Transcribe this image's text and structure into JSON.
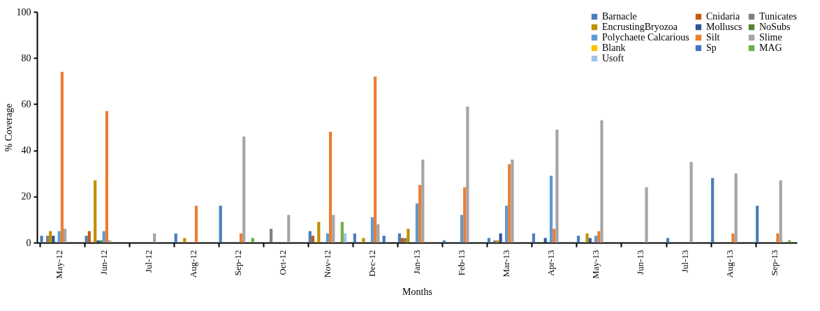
{
  "chart_data": {
    "type": "bar",
    "xlabel": "Months",
    "ylabel": "% Coverage",
    "categories": [
      "May-12",
      "Jun-12",
      "Jul-12",
      "Aug-12",
      "Sep-12",
      "Oct-12",
      "Nov-12",
      "Dec-12",
      "Jan-13",
      "Feb-13",
      "Mar-13",
      "Apr-13",
      "May-13",
      "Jun-13",
      "Jul-13",
      "Aug-13",
      "Sep-13"
    ],
    "series": [
      {
        "name": "Barnacle",
        "color": "#4a7ebb",
        "values": [
          3,
          3,
          0,
          4,
          16,
          0,
          5,
          4,
          4,
          1,
          2,
          4,
          3,
          0,
          2,
          28,
          16
        ]
      },
      {
        "name": "Cnidaria",
        "color": "#c55a11",
        "values": [
          0,
          5,
          0,
          0,
          0,
          0,
          3,
          0,
          2,
          0,
          0,
          0,
          0,
          0,
          0,
          0,
          0
        ]
      },
      {
        "name": "Tunicates",
        "color": "#7f7f7f",
        "values": [
          3,
          0,
          0,
          0,
          0,
          6,
          0,
          0,
          2,
          0,
          1,
          0,
          0,
          0,
          0,
          0,
          0
        ]
      },
      {
        "name": "EncrustingBryozoa",
        "color": "#bf9000",
        "values": [
          5,
          27,
          0,
          2,
          0,
          0,
          9,
          2,
          6,
          0,
          1,
          0,
          4,
          0,
          0,
          0,
          0
        ]
      },
      {
        "name": "Molluscs",
        "color": "#2f5597",
        "values": [
          3,
          1,
          0,
          0,
          0,
          0,
          0,
          0,
          0,
          0,
          4,
          2,
          2,
          0,
          0,
          0,
          0
        ]
      },
      {
        "name": "NoSubs",
        "color": "#548235",
        "values": [
          0,
          1,
          0,
          0,
          0,
          0,
          0,
          0,
          0,
          0,
          0,
          0,
          0,
          0,
          0,
          0,
          0
        ]
      },
      {
        "name": "Polychaete Calcarious",
        "color": "#5b9bd5",
        "values": [
          5,
          5,
          0,
          0,
          0,
          0,
          4,
          11,
          17,
          12,
          16,
          29,
          3,
          0,
          0,
          0,
          0
        ]
      },
      {
        "name": "Silt",
        "color": "#ed7d31",
        "values": [
          74,
          57,
          0,
          16,
          4,
          0,
          48,
          72,
          25,
          24,
          34,
          6,
          5,
          0,
          0,
          4,
          4
        ]
      },
      {
        "name": "Slime",
        "color": "#a5a5a5",
        "values": [
          6,
          1,
          4,
          0,
          46,
          12,
          12,
          8,
          36,
          59,
          36,
          49,
          53,
          24,
          35,
          30,
          27
        ]
      },
      {
        "name": "Blank",
        "color": "#ffc000",
        "values": [
          0,
          0,
          0,
          0,
          0,
          0,
          0,
          0,
          0,
          0,
          0,
          0,
          0,
          0,
          0,
          0,
          0
        ]
      },
      {
        "name": "Sp",
        "color": "#4472c4",
        "values": [
          0,
          0,
          0,
          0,
          0,
          0,
          0,
          3,
          0,
          0,
          0,
          0,
          0,
          0,
          0,
          0,
          0
        ]
      },
      {
        "name": "MAG",
        "color": "#70ad47",
        "values": [
          0,
          0,
          0,
          0,
          2,
          0,
          9,
          0,
          0,
          0,
          0,
          0,
          0,
          0,
          0,
          0,
          1
        ]
      },
      {
        "name": "Usoft",
        "color": "#9dc3e6",
        "values": [
          0,
          0,
          0,
          0,
          0,
          0,
          4,
          0,
          0,
          0,
          0,
          0,
          0,
          0,
          0,
          0,
          0
        ]
      }
    ],
    "ylim": [
      0,
      100
    ],
    "yticks": [
      0,
      20,
      40,
      60,
      80,
      100
    ],
    "grid": false,
    "legend": "top right"
  }
}
